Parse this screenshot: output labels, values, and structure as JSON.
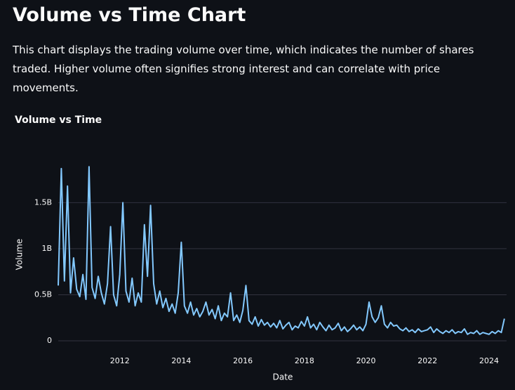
{
  "header": {
    "title": "Volume vs Time Chart",
    "description": "This chart displays the trading volume over time, which indicates the number of shares traded. Higher volume often signifies strong interest and can correlate with price movements."
  },
  "chart_data": {
    "type": "line",
    "title": "Volume vs Time",
    "x_label": "Date",
    "y_label": "Volume",
    "color": "#83c9ff",
    "grid": true,
    "xlim": [
      2010.0,
      2024.57
    ],
    "xticks": [
      2012,
      2014,
      2016,
      2018,
      2020,
      2022,
      2024
    ],
    "ylim": [
      0,
      1930000000.0
    ],
    "yticks": [
      {
        "value": 0,
        "label": "0"
      },
      {
        "value": 500000000.0,
        "label": "0.5B"
      },
      {
        "value": 1000000000.0,
        "label": "1B"
      },
      {
        "value": 1500000000.0,
        "label": "1.5B"
      }
    ],
    "x": [
      2010.0,
      2010.1,
      2010.2,
      2010.3,
      2010.4,
      2010.5,
      2010.6,
      2010.7,
      2010.8,
      2010.9,
      2011.0,
      2011.1,
      2011.2,
      2011.3,
      2011.4,
      2011.5,
      2011.6,
      2011.7,
      2011.8,
      2011.9,
      2012.0,
      2012.1,
      2012.2,
      2012.3,
      2012.4,
      2012.5,
      2012.6,
      2012.7,
      2012.8,
      2012.9,
      2013.0,
      2013.1,
      2013.2,
      2013.3,
      2013.4,
      2013.5,
      2013.6,
      2013.7,
      2013.8,
      2013.9,
      2014.0,
      2014.1,
      2014.2,
      2014.3,
      2014.4,
      2014.5,
      2014.6,
      2014.7,
      2014.8,
      2014.9,
      2015.0,
      2015.1,
      2015.2,
      2015.3,
      2015.4,
      2015.5,
      2015.6,
      2015.7,
      2015.8,
      2015.9,
      2016.0,
      2016.1,
      2016.2,
      2016.3,
      2016.4,
      2016.5,
      2016.6,
      2016.7,
      2016.8,
      2016.9,
      2017.0,
      2017.1,
      2017.2,
      2017.3,
      2017.4,
      2017.5,
      2017.6,
      2017.7,
      2017.8,
      2017.9,
      2018.0,
      2018.1,
      2018.2,
      2018.3,
      2018.4,
      2018.5,
      2018.6,
      2018.7,
      2018.8,
      2018.9,
      2019.0,
      2019.1,
      2019.2,
      2019.3,
      2019.4,
      2019.5,
      2019.6,
      2019.7,
      2019.8,
      2019.9,
      2020.0,
      2020.1,
      2020.2,
      2020.3,
      2020.4,
      2020.5,
      2020.6,
      2020.7,
      2020.8,
      2020.9,
      2021.0,
      2021.1,
      2021.2,
      2021.3,
      2021.4,
      2021.5,
      2021.6,
      2021.7,
      2021.8,
      2021.9,
      2022.0,
      2022.1,
      2022.2,
      2022.3,
      2022.4,
      2022.5,
      2022.6,
      2022.7,
      2022.8,
      2022.9,
      2023.0,
      2023.1,
      2023.2,
      2023.3,
      2023.4,
      2023.5,
      2023.6,
      2023.7,
      2023.8,
      2023.9,
      2024.0,
      2024.1,
      2024.2,
      2024.3,
      2024.4,
      2024.5
    ],
    "values": [
      600000000.0,
      1870000000.0,
      650000000.0,
      1680000000.0,
      520000000.0,
      900000000.0,
      560000000.0,
      480000000.0,
      720000000.0,
      450000000.0,
      1890000000.0,
      580000000.0,
      460000000.0,
      700000000.0,
      520000000.0,
      400000000.0,
      620000000.0,
      1240000000.0,
      500000000.0,
      380000000.0,
      720000000.0,
      1500000000.0,
      540000000.0,
      420000000.0,
      680000000.0,
      380000000.0,
      520000000.0,
      420000000.0,
      1260000000.0,
      700000000.0,
      1470000000.0,
      620000000.0,
      400000000.0,
      540000000.0,
      360000000.0,
      460000000.0,
      320000000.0,
      400000000.0,
      300000000.0,
      520000000.0,
      1070000000.0,
      380000000.0,
      300000000.0,
      420000000.0,
      280000000.0,
      350000000.0,
      260000000.0,
      320000000.0,
      420000000.0,
      280000000.0,
      340000000.0,
      240000000.0,
      380000000.0,
      220000000.0,
      300000000.0,
      260000000.0,
      520000000.0,
      220000000.0,
      280000000.0,
      200000000.0,
      330000000.0,
      600000000.0,
      220000000.0,
      180000000.0,
      260000000.0,
      160000000.0,
      230000000.0,
      170000000.0,
      200000000.0,
      150000000.0,
      190000000.0,
      140000000.0,
      220000000.0,
      130000000.0,
      170000000.0,
      200000000.0,
      120000000.0,
      160000000.0,
      140000000.0,
      210000000.0,
      160000000.0,
      260000000.0,
      140000000.0,
      180000000.0,
      120000000.0,
      200000000.0,
      150000000.0,
      110000000.0,
      170000000.0,
      120000000.0,
      140000000.0,
      190000000.0,
      110000000.0,
      150000000.0,
      100000000.0,
      130000000.0,
      170000000.0,
      120000000.0,
      150000000.0,
      110000000.0,
      180000000.0,
      420000000.0,
      260000000.0,
      200000000.0,
      250000000.0,
      380000000.0,
      180000000.0,
      140000000.0,
      200000000.0,
      160000000.0,
      170000000.0,
      130000000.0,
      110000000.0,
      140000000.0,
      100000000.0,
      120000000.0,
      90000000.0,
      130000000.0,
      100000000.0,
      110000000.0,
      120000000.0,
      150000000.0,
      90000000.0,
      130000000.0,
      100000000.0,
      80000000.0,
      110000000.0,
      90000000.0,
      120000000.0,
      80000000.0,
      100000000.0,
      90000000.0,
      130000000.0,
      70000000.0,
      90000000.0,
      80000000.0,
      110000000.0,
      70000000.0,
      90000000.0,
      80000000.0,
      70000000.0,
      100000000.0,
      80000000.0,
      110000000.0,
      90000000.0,
      240000000.0
    ]
  }
}
